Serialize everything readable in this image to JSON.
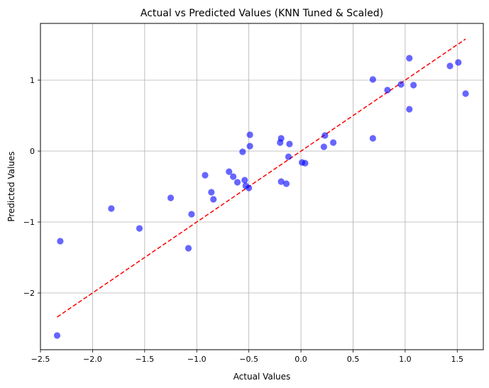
{
  "chart_data": {
    "type": "scatter",
    "title": "Actual vs Predicted Values (KNN Tuned & Scaled)",
    "xlabel": "Actual Values",
    "ylabel": "Predicted Values",
    "xlim": [
      -2.5,
      1.75
    ],
    "ylim": [
      -2.8,
      1.8
    ],
    "xticks": [
      -2.5,
      -2.0,
      -1.5,
      -1.0,
      -0.5,
      0.0,
      0.5,
      1.0,
      1.5
    ],
    "xtick_labels": [
      "−2.5",
      "−2.0",
      "−1.5",
      "−1.0",
      "−0.5",
      "0.0",
      "0.5",
      "1.0",
      "1.5"
    ],
    "yticks": [
      -2,
      -1,
      0,
      1
    ],
    "ytick_labels": [
      "−2",
      "−1",
      "0",
      "1"
    ],
    "grid": true,
    "point_color": "#0000ff",
    "line_color": "#ff0000",
    "reference_line": {
      "x": [
        -2.34,
        1.58
      ],
      "y": [
        -2.34,
        1.58
      ],
      "style": "dashed"
    },
    "points": [
      {
        "x": -2.34,
        "y": -2.6
      },
      {
        "x": -2.31,
        "y": -1.27
      },
      {
        "x": -1.82,
        "y": -0.81
      },
      {
        "x": -1.55,
        "y": -1.09
      },
      {
        "x": -1.25,
        "y": -0.66
      },
      {
        "x": -1.08,
        "y": -1.37
      },
      {
        "x": -1.05,
        "y": -0.89
      },
      {
        "x": -0.92,
        "y": -0.34
      },
      {
        "x": -0.86,
        "y": -0.58
      },
      {
        "x": -0.84,
        "y": -0.68
      },
      {
        "x": -0.69,
        "y": -0.29
      },
      {
        "x": -0.65,
        "y": -0.36
      },
      {
        "x": -0.61,
        "y": -0.44
      },
      {
        "x": -0.56,
        "y": -0.01
      },
      {
        "x": -0.54,
        "y": -0.41
      },
      {
        "x": -0.53,
        "y": -0.49
      },
      {
        "x": -0.5,
        "y": -0.52
      },
      {
        "x": -0.49,
        "y": 0.07
      },
      {
        "x": -0.49,
        "y": 0.23
      },
      {
        "x": -0.2,
        "y": 0.12
      },
      {
        "x": -0.19,
        "y": -0.43
      },
      {
        "x": -0.19,
        "y": 0.18
      },
      {
        "x": -0.14,
        "y": -0.46
      },
      {
        "x": -0.12,
        "y": -0.08
      },
      {
        "x": -0.11,
        "y": 0.1
      },
      {
        "x": 0.01,
        "y": -0.16
      },
      {
        "x": 0.04,
        "y": -0.17
      },
      {
        "x": 0.22,
        "y": 0.06
      },
      {
        "x": 0.23,
        "y": 0.22
      },
      {
        "x": 0.31,
        "y": 0.12
      },
      {
        "x": 0.69,
        "y": 1.01
      },
      {
        "x": 0.69,
        "y": 0.18
      },
      {
        "x": 0.83,
        "y": 0.86
      },
      {
        "x": 0.96,
        "y": 0.94
      },
      {
        "x": 1.04,
        "y": 1.31
      },
      {
        "x": 1.04,
        "y": 0.59
      },
      {
        "x": 1.08,
        "y": 0.93
      },
      {
        "x": 1.43,
        "y": 1.2
      },
      {
        "x": 1.51,
        "y": 1.25
      },
      {
        "x": 1.58,
        "y": 0.81
      }
    ]
  }
}
